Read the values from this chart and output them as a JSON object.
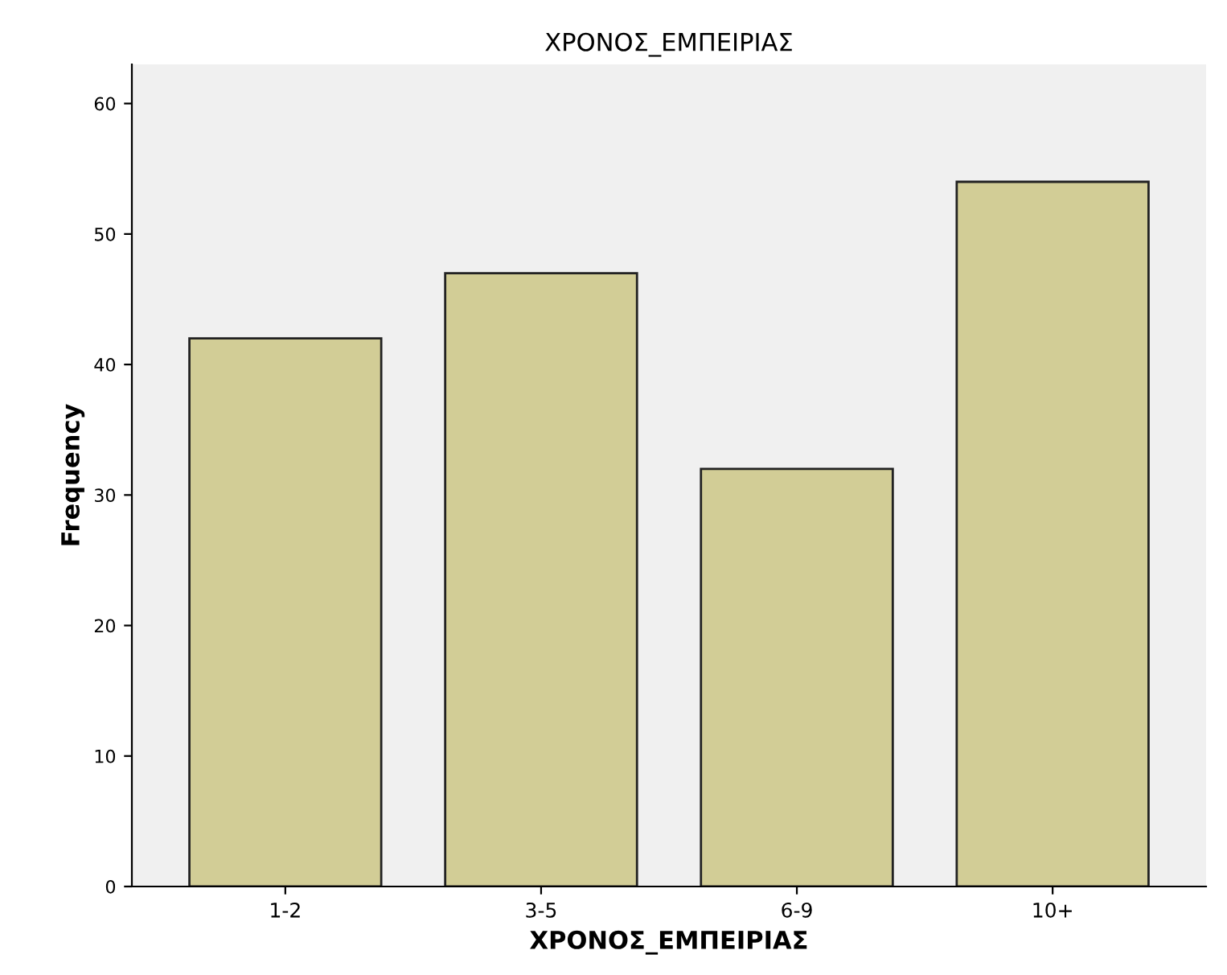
{
  "chart_data": {
    "type": "bar",
    "title": "ΧΡΟΝΟΣ_ΕΜΠΕΙΡΙΑΣ",
    "xlabel": "ΧΡΟΝΟΣ_ΕΜΠΕΙΡΙΑΣ",
    "ylabel": "Frequency",
    "categories": [
      "1-2",
      "3-5",
      "6-9",
      "10+"
    ],
    "values": [
      42,
      47,
      32,
      54
    ],
    "color": "#d2cd96",
    "ylim": [
      0,
      63
    ],
    "yticks": [
      0,
      10,
      20,
      30,
      40,
      50,
      60
    ],
    "grid": false
  }
}
